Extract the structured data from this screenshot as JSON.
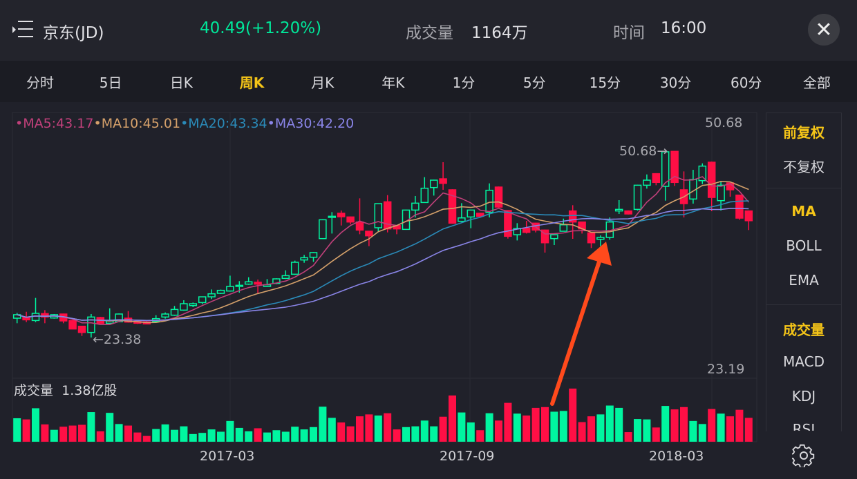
{
  "header": {
    "menu_icon": "menu-list-icon",
    "title": "京东(JD)",
    "price_change": "40.49(+1.20%)",
    "volume_label": "成交量",
    "volume_value": "1164万",
    "time_label": "时间",
    "time_value": "16:00",
    "close_icon": "close-x-icon"
  },
  "tabs": [
    {
      "label": "分时"
    },
    {
      "label": "5日"
    },
    {
      "label": "日K"
    },
    {
      "label": "周K",
      "active": true
    },
    {
      "label": "月K"
    },
    {
      "label": "年K"
    },
    {
      "label": "1分"
    },
    {
      "label": "5分"
    },
    {
      "label": "15分"
    },
    {
      "label": "30分"
    },
    {
      "label": "60分"
    },
    {
      "label": "全部"
    }
  ],
  "legend": {
    "ma5": "•MA5:43.17",
    "ma10": "•MA10:45.01",
    "ma20": "•MA20:43.34",
    "ma30": "•MA30:42.20"
  },
  "colors": {
    "up": "#00f5a0",
    "down": "#ff0f45",
    "ma5": "#c0407a",
    "ma10": "#d4a06a",
    "ma20": "#2a8ab8",
    "ma30": "#8a85e8",
    "accent": "#f5c518",
    "arrow": "#ff4a1c"
  },
  "price_axis": {
    "max_label": "50.68",
    "min_label": "23.19"
  },
  "annotations": {
    "high_label": "50.68→",
    "low_label": "←23.38"
  },
  "volume": {
    "label": "成交量",
    "max_label": "1.38亿股"
  },
  "dates": [
    "2017-03",
    "2017-09",
    "2018-03"
  ],
  "side_panel": {
    "items": [
      {
        "label": "前复权",
        "active": true
      },
      {
        "label": "不复权"
      },
      {
        "label": "MA",
        "active": true
      },
      {
        "label": "BOLL"
      },
      {
        "label": "EMA"
      },
      {
        "label": "成交量",
        "active": true
      },
      {
        "label": "MACD"
      },
      {
        "label": "KDJ"
      },
      {
        "label": "RSI"
      }
    ],
    "settings_icon": "gear-icon"
  },
  "chart_data": {
    "type": "candlestick",
    "interval": "weekly",
    "ylim": [
      23.19,
      50.68
    ],
    "ohlc": [
      [
        26.21,
        26.99,
        25.47,
        26.72
      ],
      [
        26.38,
        27.15,
        25.64,
        25.97
      ],
      [
        25.87,
        29.18,
        25.64,
        26.92
      ],
      [
        26.88,
        27.39,
        25.47,
        26.38
      ],
      [
        26.24,
        26.82,
        26.14,
        26.72
      ],
      [
        26.82,
        26.88,
        25.47,
        25.81
      ],
      [
        25.87,
        25.97,
        24.63,
        24.63
      ],
      [
        25.03,
        25.1,
        23.61,
        24.12
      ],
      [
        24.12,
        26.82,
        23.38,
        26.38
      ],
      [
        26.31,
        26.4,
        25.4,
        25.47
      ],
      [
        25.47,
        27.66,
        25.4,
        25.81
      ],
      [
        25.7,
        26.9,
        25.64,
        26.82
      ],
      [
        26.21,
        27.25,
        25.55,
        25.64
      ],
      [
        25.74,
        25.85,
        25.37,
        25.47
      ],
      [
        25.64,
        25.8,
        25.3,
        25.37
      ],
      [
        25.74,
        26.65,
        25.64,
        26.14
      ],
      [
        26.38,
        27.05,
        26.14,
        26.82
      ],
      [
        26.65,
        28.0,
        26.55,
        27.49
      ],
      [
        27.39,
        28.84,
        27.3,
        28.33
      ],
      [
        28.06,
        28.5,
        27.83,
        28.33
      ],
      [
        28.5,
        29.4,
        28.27,
        29.34
      ],
      [
        29.34,
        30.42,
        29.01,
        29.78
      ],
      [
        29.85,
        30.4,
        29.75,
        30.29
      ],
      [
        30.19,
        32.44,
        30.1,
        30.86
      ],
      [
        30.86,
        31.64,
        29.95,
        31.03
      ],
      [
        31.2,
        32.21,
        31.1,
        31.54
      ],
      [
        31.47,
        31.87,
        29.85,
        31.2
      ],
      [
        30.86,
        31.94,
        30.8,
        31.1
      ],
      [
        31.3,
        32.05,
        31.2,
        31.97
      ],
      [
        32.04,
        33.22,
        31.95,
        32.44
      ],
      [
        32.65,
        34.64,
        32.55,
        34.4
      ],
      [
        34.74,
        35.48,
        34.33,
        35.07
      ],
      [
        35.14,
        35.9,
        34.47,
        35.82
      ],
      [
        37.87,
        40.7,
        37.8,
        40.63
      ],
      [
        40.97,
        41.75,
        38.61,
        41.14
      ],
      [
        41.58,
        41.98,
        39.79,
        41.07
      ],
      [
        41.04,
        41.1,
        39.96,
        40.3
      ],
      [
        40.3,
        43.77,
        38.51,
        39.12
      ],
      [
        38.95,
        39.0,
        36.76,
        38.28
      ],
      [
        39.46,
        43.05,
        38.95,
        42.99
      ],
      [
        43.26,
        44.24,
        38.78,
        39.29
      ],
      [
        39.79,
        39.85,
        38.51,
        39.29
      ],
      [
        39.22,
        42.1,
        39.15,
        42.05
      ],
      [
        42.05,
        44.11,
        40.97,
        43.06
      ],
      [
        43.16,
        46.87,
        43.1,
        45.25
      ],
      [
        45.35,
        46.5,
        44.17,
        46.43
      ],
      [
        46.63,
        49.06,
        45.02,
        45.96
      ],
      [
        45.02,
        45.1,
        40.05,
        40.13
      ],
      [
        40.4,
        43.06,
        40.3,
        40.9
      ],
      [
        41.04,
        42.1,
        39.39,
        42.05
      ],
      [
        41.58,
        41.65,
        41.05,
        41.14
      ],
      [
        41.71,
        45.96,
        40.97,
        44.95
      ],
      [
        45.42,
        45.5,
        42.4,
        42.49
      ],
      [
        41.98,
        42.05,
        37.87,
        38.21
      ],
      [
        38.44,
        40.13,
        37.6,
        39.35
      ],
      [
        39.39,
        40.47,
        38.61,
        38.78
      ],
      [
        40.13,
        40.2,
        38.78,
        39.12
      ],
      [
        39.12,
        39.2,
        35.82,
        37.26
      ],
      [
        37.87,
        38.5,
        36.93,
        38.44
      ],
      [
        38.95,
        40.8,
        38.9,
        39.89
      ],
      [
        41.92,
        42.76,
        37.84,
        40.3
      ],
      [
        40.3,
        40.35,
        38.61,
        39.29
      ],
      [
        38.71,
        38.8,
        36.49,
        37.26
      ],
      [
        37.77,
        38.34,
        36.76,
        38.04
      ],
      [
        38.04,
        40.97,
        37.7,
        40.3
      ],
      [
        41.92,
        43.5,
        41.48,
        42.15
      ],
      [
        41.92,
        42.0,
        41.4,
        41.48
      ],
      [
        42.15,
        45.75,
        41.98,
        45.69
      ],
      [
        45.69,
        47.27,
        45.19,
        46.43
      ],
      [
        47.38,
        47.45,
        45.69,
        46.1
      ],
      [
        45.52,
        50.68,
        43.43,
        50.58
      ],
      [
        50.65,
        50.68,
        45.59,
        46.1
      ],
      [
        45.02,
        47.71,
        40.97,
        42.99
      ],
      [
        43.67,
        47.95,
        42.99,
        46.53
      ],
      [
        46.36,
        48.89,
        45.86,
        48.49
      ],
      [
        49.06,
        49.15,
        41.88,
        43.9
      ],
      [
        43.43,
        46.2,
        41.98,
        45.69
      ],
      [
        46.03,
        46.1,
        44.01,
        45.02
      ],
      [
        44.24,
        44.3,
        40.63,
        40.87
      ],
      [
        41.92,
        42.0,
        39.12,
        40.49
      ]
    ],
    "volume_yi": [
      0.61,
      0.58,
      0.87,
      0.45,
      0.31,
      0.39,
      0.42,
      0.44,
      0.77,
      0.27,
      0.75,
      0.46,
      0.42,
      0.24,
      0.15,
      0.33,
      0.45,
      0.31,
      0.4,
      0.2,
      0.23,
      0.32,
      0.26,
      0.54,
      0.36,
      0.27,
      0.35,
      0.24,
      0.3,
      0.26,
      0.39,
      0.32,
      0.38,
      0.91,
      0.62,
      0.5,
      0.4,
      0.66,
      0.71,
      0.68,
      0.74,
      0.32,
      0.38,
      0.4,
      0.55,
      0.4,
      0.65,
      1.2,
      0.76,
      0.5,
      0.3,
      0.74,
      0.55,
      1.01,
      0.73,
      0.68,
      0.88,
      0.9,
      0.78,
      0.8,
      1.38,
      0.51,
      0.66,
      0.71,
      0.94,
      0.88,
      0.25,
      0.59,
      0.58,
      0.37,
      0.93,
      0.84,
      0.9,
      0.54,
      0.46,
      0.85,
      0.73,
      0.66,
      0.83,
      0.62
    ],
    "ma_periods": [
      5,
      10,
      20,
      30
    ]
  }
}
